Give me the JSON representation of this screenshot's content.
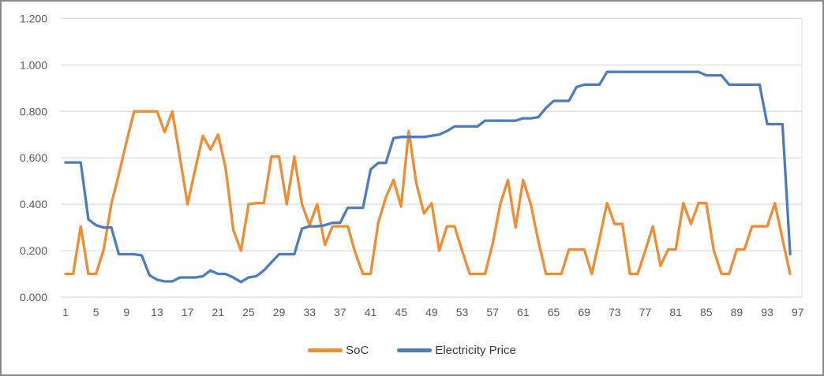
{
  "chart_data": {
    "type": "line",
    "title": "",
    "x_tick_labels": [
      "1",
      "5",
      "9",
      "13",
      "17",
      "21",
      "25",
      "29",
      "33",
      "37",
      "41",
      "45",
      "49",
      "53",
      "57",
      "61",
      "65",
      "69",
      "73",
      "77",
      "81",
      "85",
      "89",
      "93",
      "97"
    ],
    "y_tick_labels": [
      "0.000",
      "0.200",
      "0.400",
      "0.600",
      "0.800",
      "1.000",
      "1.200"
    ],
    "ylim": [
      0,
      1.2
    ],
    "x_count": 96,
    "grid": "horizontal",
    "grid_color": "#D9D9D9",
    "legend_position": "bottom",
    "series": [
      {
        "name": "SoC",
        "color": "#F08C33",
        "values": [
          0.1,
          0.1,
          0.305,
          0.1,
          0.1,
          0.205,
          0.4,
          0.53,
          0.67,
          0.8,
          0.8,
          0.8,
          0.8,
          0.71,
          0.8,
          0.6,
          0.4,
          0.55,
          0.695,
          0.635,
          0.7,
          0.555,
          0.29,
          0.2,
          0.4,
          0.405,
          0.405,
          0.605,
          0.605,
          0.4,
          0.605,
          0.4,
          0.31,
          0.4,
          0.225,
          0.305,
          0.305,
          0.305,
          0.19,
          0.1,
          0.1,
          0.32,
          0.43,
          0.505,
          0.39,
          0.715,
          0.49,
          0.36,
          0.405,
          0.2,
          0.305,
          0.305,
          0.2,
          0.1,
          0.1,
          0.1,
          0.23,
          0.4,
          0.505,
          0.3,
          0.505,
          0.4,
          0.24,
          0.1,
          0.1,
          0.1,
          0.205,
          0.205,
          0.205,
          0.1,
          0.25,
          0.405,
          0.315,
          0.315,
          0.1,
          0.1,
          0.2,
          0.305,
          0.135,
          0.205,
          0.205,
          0.405,
          0.315,
          0.405,
          0.405,
          0.2,
          0.1,
          0.1,
          0.205,
          0.205,
          0.305,
          0.305,
          0.305,
          0.405,
          0.25,
          0.1
        ]
      },
      {
        "name": "Electricity Price",
        "color": "#4D7CBE",
        "values": [
          0.58,
          0.58,
          0.58,
          0.335,
          0.31,
          0.3,
          0.3,
          0.185,
          0.185,
          0.185,
          0.18,
          0.095,
          0.075,
          0.068,
          0.068,
          0.085,
          0.085,
          0.085,
          0.09,
          0.115,
          0.1,
          0.1,
          0.085,
          0.065,
          0.085,
          0.09,
          0.115,
          0.15,
          0.185,
          0.185,
          0.185,
          0.295,
          0.305,
          0.305,
          0.31,
          0.32,
          0.32,
          0.385,
          0.385,
          0.385,
          0.55,
          0.578,
          0.578,
          0.685,
          0.69,
          0.69,
          0.69,
          0.69,
          0.695,
          0.7,
          0.715,
          0.735,
          0.735,
          0.735,
          0.735,
          0.76,
          0.76,
          0.76,
          0.76,
          0.76,
          0.77,
          0.77,
          0.775,
          0.815,
          0.845,
          0.845,
          0.845,
          0.905,
          0.915,
          0.915,
          0.915,
          0.97,
          0.97,
          0.97,
          0.97,
          0.97,
          0.97,
          0.97,
          0.97,
          0.97,
          0.97,
          0.97,
          0.97,
          0.97,
          0.955,
          0.955,
          0.955,
          0.915,
          0.915,
          0.915,
          0.915,
          0.915,
          0.745,
          0.745,
          0.745,
          0.185
        ]
      }
    ]
  }
}
